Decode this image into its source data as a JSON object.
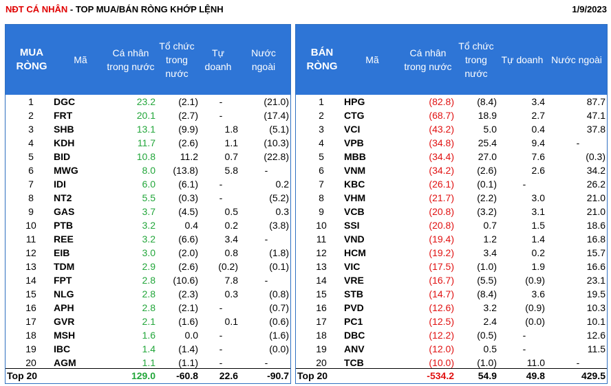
{
  "title": {
    "highlight": "NĐT CÁ NHÂN",
    "rest": " - TOP MUA/BÁN RÒNG KHỚP LỆNH",
    "date": "1/9/2023"
  },
  "buy": {
    "headers": {
      "section": "MUA RÒNG",
      "ticker": "Mã",
      "individual": "Cá nhân trong nước",
      "institution": "Tổ chức trong nước",
      "prop": "Tự doanh",
      "foreign": "Nước ngoài"
    },
    "rows": [
      {
        "rank": "1",
        "ticker": "DGC",
        "individual": "23.2",
        "institution": "(2.1)",
        "prop": "-",
        "foreign": "(21.0)"
      },
      {
        "rank": "2",
        "ticker": "FRT",
        "individual": "20.1",
        "institution": "(2.7)",
        "prop": "-",
        "foreign": "(17.4)"
      },
      {
        "rank": "3",
        "ticker": "SHB",
        "individual": "13.1",
        "institution": "(9.9)",
        "prop": "1.8",
        "foreign": "(5.1)"
      },
      {
        "rank": "4",
        "ticker": "KDH",
        "individual": "11.7",
        "institution": "(2.6)",
        "prop": "1.1",
        "foreign": "(10.3)"
      },
      {
        "rank": "5",
        "ticker": "BID",
        "individual": "10.8",
        "institution": "11.2",
        "prop": "0.7",
        "foreign": "(22.8)"
      },
      {
        "rank": "6",
        "ticker": "MWG",
        "individual": "8.0",
        "institution": "(13.8)",
        "prop": "5.8",
        "foreign": "-"
      },
      {
        "rank": "7",
        "ticker": "IDI",
        "individual": "6.0",
        "institution": "(6.1)",
        "prop": "-",
        "foreign": "0.2"
      },
      {
        "rank": "8",
        "ticker": "NT2",
        "individual": "5.5",
        "institution": "(0.3)",
        "prop": "-",
        "foreign": "(5.2)"
      },
      {
        "rank": "9",
        "ticker": "GAS",
        "individual": "3.7",
        "institution": "(4.5)",
        "prop": "0.5",
        "foreign": "0.3"
      },
      {
        "rank": "10",
        "ticker": "PTB",
        "individual": "3.2",
        "institution": "0.4",
        "prop": "0.2",
        "foreign": "(3.8)"
      },
      {
        "rank": "11",
        "ticker": "REE",
        "individual": "3.2",
        "institution": "(6.6)",
        "prop": "3.4",
        "foreign": "-"
      },
      {
        "rank": "12",
        "ticker": "EIB",
        "individual": "3.0",
        "institution": "(2.0)",
        "prop": "0.8",
        "foreign": "(1.8)"
      },
      {
        "rank": "13",
        "ticker": "TDM",
        "individual": "2.9",
        "institution": "(2.6)",
        "prop": "(0.2)",
        "foreign": "(0.1)"
      },
      {
        "rank": "14",
        "ticker": "FPT",
        "individual": "2.8",
        "institution": "(10.6)",
        "prop": "7.8",
        "foreign": "-"
      },
      {
        "rank": "15",
        "ticker": "NLG",
        "individual": "2.8",
        "institution": "(2.3)",
        "prop": "0.3",
        "foreign": "(0.8)"
      },
      {
        "rank": "16",
        "ticker": "APH",
        "individual": "2.8",
        "institution": "(2.1)",
        "prop": "-",
        "foreign": "(0.7)"
      },
      {
        "rank": "17",
        "ticker": "GVR",
        "individual": "2.1",
        "institution": "(1.6)",
        "prop": "0.1",
        "foreign": "(0.6)"
      },
      {
        "rank": "18",
        "ticker": "MSH",
        "individual": "1.6",
        "institution": "0.0",
        "prop": "-",
        "foreign": "(1.6)"
      },
      {
        "rank": "19",
        "ticker": "IBC",
        "individual": "1.4",
        "institution": "(1.4)",
        "prop": "-",
        "foreign": "(0.0)"
      },
      {
        "rank": "20",
        "ticker": "AGM",
        "individual": "1.1",
        "institution": "(1.1)",
        "prop": "-",
        "foreign": "-"
      }
    ],
    "total": {
      "label": "Top 20",
      "individual": "129.0",
      "institution": "-60.8",
      "prop": "22.6",
      "foreign": "-90.7"
    }
  },
  "sell": {
    "headers": {
      "section": "BÁN RÒNG",
      "ticker": "Mã",
      "individual": "Cá nhân trong nước",
      "institution": "Tổ chức trong nước",
      "prop": "Tự doanh",
      "foreign": "Nước ngoài"
    },
    "rows": [
      {
        "rank": "1",
        "ticker": "HPG",
        "individual": "(82.8)",
        "institution": "(8.4)",
        "prop": "3.4",
        "foreign": "87.7"
      },
      {
        "rank": "2",
        "ticker": "CTG",
        "individual": "(68.7)",
        "institution": "18.9",
        "prop": "2.7",
        "foreign": "47.1"
      },
      {
        "rank": "3",
        "ticker": "VCI",
        "individual": "(43.2)",
        "institution": "5.0",
        "prop": "0.4",
        "foreign": "37.8"
      },
      {
        "rank": "4",
        "ticker": "VPB",
        "individual": "(34.8)",
        "institution": "25.4",
        "prop": "9.4",
        "foreign": "-"
      },
      {
        "rank": "5",
        "ticker": "MBB",
        "individual": "(34.4)",
        "institution": "27.0",
        "prop": "7.6",
        "foreign": "(0.3)"
      },
      {
        "rank": "6",
        "ticker": "VNM",
        "individual": "(34.2)",
        "institution": "(2.6)",
        "prop": "2.6",
        "foreign": "34.2"
      },
      {
        "rank": "7",
        "ticker": "KBC",
        "individual": "(26.1)",
        "institution": "(0.1)",
        "prop": "-",
        "foreign": "26.2"
      },
      {
        "rank": "8",
        "ticker": "VHM",
        "individual": "(21.7)",
        "institution": "(2.2)",
        "prop": "3.0",
        "foreign": "21.0"
      },
      {
        "rank": "9",
        "ticker": "VCB",
        "individual": "(20.8)",
        "institution": "(3.2)",
        "prop": "3.1",
        "foreign": "21.0"
      },
      {
        "rank": "10",
        "ticker": "SSI",
        "individual": "(20.8)",
        "institution": "0.7",
        "prop": "1.5",
        "foreign": "18.6"
      },
      {
        "rank": "11",
        "ticker": "VND",
        "individual": "(19.4)",
        "institution": "1.2",
        "prop": "1.4",
        "foreign": "16.8"
      },
      {
        "rank": "12",
        "ticker": "HCM",
        "individual": "(19.2)",
        "institution": "3.4",
        "prop": "0.2",
        "foreign": "15.7"
      },
      {
        "rank": "13",
        "ticker": "VIC",
        "individual": "(17.5)",
        "institution": "(1.0)",
        "prop": "1.9",
        "foreign": "16.6"
      },
      {
        "rank": "14",
        "ticker": "VRE",
        "individual": "(16.7)",
        "institution": "(5.5)",
        "prop": "(0.9)",
        "foreign": "23.1"
      },
      {
        "rank": "15",
        "ticker": "STB",
        "individual": "(14.7)",
        "institution": "(8.4)",
        "prop": "3.6",
        "foreign": "19.5"
      },
      {
        "rank": "16",
        "ticker": "PVD",
        "individual": "(12.6)",
        "institution": "3.2",
        "prop": "(0.9)",
        "foreign": "10.3"
      },
      {
        "rank": "17",
        "ticker": "PC1",
        "individual": "(12.5)",
        "institution": "2.4",
        "prop": "(0.0)",
        "foreign": "10.1"
      },
      {
        "rank": "18",
        "ticker": "DBC",
        "individual": "(12.2)",
        "institution": "(0.5)",
        "prop": "-",
        "foreign": "12.6"
      },
      {
        "rank": "19",
        "ticker": "ANV",
        "individual": "(12.0)",
        "institution": "0.5",
        "prop": "-",
        "foreign": "11.5"
      },
      {
        "rank": "20",
        "ticker": "TCB",
        "individual": "(10.0)",
        "institution": "(1.0)",
        "prop": "11.0",
        "foreign": "-"
      }
    ],
    "total": {
      "label": "Top 20",
      "individual": "-534.2",
      "institution": "54.9",
      "prop": "49.8",
      "foreign": "429.5"
    }
  },
  "colors": {
    "header_bg": "#2e75d6",
    "buy_value": "#22a63a",
    "sell_value": "#e01010",
    "title_highlight": "#e00000"
  }
}
